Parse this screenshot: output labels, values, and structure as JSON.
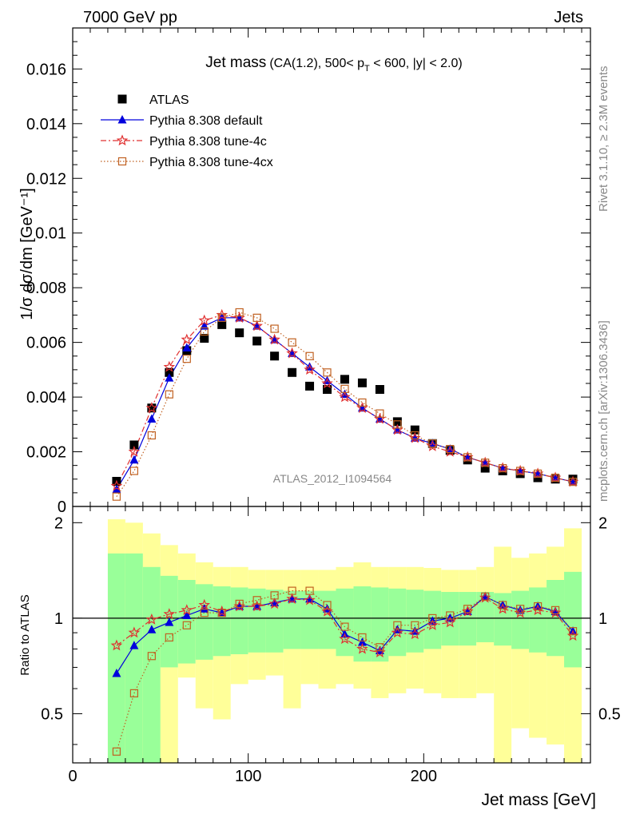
{
  "header": {
    "left": "7000 GeV pp",
    "right": "Jets"
  },
  "main_title": {
    "main": "Jet mass",
    "detail_a": "(CA(1.2), 500< p",
    "detail_sub": "T",
    "detail_b": " < 600, |y| < 2.0)"
  },
  "side_labels": {
    "rivet": "Rivet 3.1.10, ≥ 2.3M events",
    "mcplots": "mcplots.cern.ch [arXiv:1306.3436]"
  },
  "watermark": "ATLAS_2012_I1094564",
  "ratio_ylabel": "Ratio to ATLAS",
  "legend": [
    {
      "label": "ATLAS",
      "color": "#000000",
      "marker": "square"
    },
    {
      "label": "Pythia 8.308 default",
      "color": "#0000dd",
      "marker": "triangle"
    },
    {
      "label": "Pythia 8.308 tune-4c",
      "color": "#e03030",
      "marker": "star"
    },
    {
      "label": "Pythia 8.308 tune-4cx",
      "color": "#c06020",
      "marker": "open-square"
    }
  ],
  "chart_data": [
    {
      "type": "scatter",
      "panel": "main",
      "title": "Jet mass (CA(1.2), 500< pT < 600, |y| < 2.0)",
      "ylabel": "1/σ dσ/dm [GeV⁻¹]",
      "xlim": [
        0,
        295
      ],
      "ylim": [
        0,
        0.0175
      ],
      "yticks": [
        "0",
        "0.002",
        "0.004",
        "0.006",
        "0.008",
        "0.01",
        "0.012",
        "0.014",
        "0.016"
      ],
      "x": [
        25,
        35,
        45,
        55,
        65,
        75,
        85,
        95,
        105,
        115,
        125,
        135,
        145,
        155,
        165,
        175,
        185,
        195,
        205,
        215,
        225,
        235,
        245,
        255,
        265,
        275,
        285
      ],
      "series": [
        {
          "name": "ATLAS",
          "values": [
            0.00092,
            0.00225,
            0.0036,
            0.0049,
            0.0057,
            0.00615,
            0.00665,
            0.00635,
            0.00605,
            0.0055,
            0.0049,
            0.0044,
            0.00428,
            0.00465,
            0.00452,
            0.00428,
            0.0031,
            0.0028,
            0.0023,
            0.00205,
            0.0017,
            0.0014,
            0.0013,
            0.0012,
            0.00105,
            0.001,
            0.001
          ]
        },
        {
          "name": "Pythia 8.308 default",
          "values": [
            0.00062,
            0.0017,
            0.0032,
            0.0047,
            0.0058,
            0.0066,
            0.0069,
            0.0069,
            0.0066,
            0.0061,
            0.0056,
            0.0051,
            0.0046,
            0.0041,
            0.0036,
            0.0032,
            0.0028,
            0.0025,
            0.0023,
            0.0021,
            0.0018,
            0.0016,
            0.0014,
            0.0013,
            0.0012,
            0.00105,
            0.0009
          ]
        },
        {
          "name": "Pythia 8.308 tune-4c",
          "values": [
            0.00075,
            0.002,
            0.0036,
            0.0051,
            0.0061,
            0.0068,
            0.007,
            0.0069,
            0.0066,
            0.0061,
            0.0056,
            0.005,
            0.0045,
            0.004,
            0.0036,
            0.0032,
            0.0028,
            0.0025,
            0.0022,
            0.002,
            0.0018,
            0.0016,
            0.0014,
            0.0013,
            0.0012,
            0.00105,
            0.0009
          ]
        },
        {
          "name": "Pythia 8.308 tune-4cx",
          "values": [
            0.00036,
            0.0013,
            0.0026,
            0.0041,
            0.0054,
            0.0064,
            0.0069,
            0.0071,
            0.0069,
            0.0065,
            0.006,
            0.0055,
            0.0049,
            0.0043,
            0.0038,
            0.0034,
            0.003,
            0.0026,
            0.0023,
            0.0021,
            0.0018,
            0.0016,
            0.0014,
            0.0013,
            0.0012,
            0.00105,
            0.0009
          ]
        }
      ]
    },
    {
      "type": "line",
      "panel": "ratio",
      "xlabel": "Jet mass [GeV]",
      "ylabel": "Ratio to ATLAS",
      "xlim": [
        0,
        295
      ],
      "ylim": [
        0.35,
        2.25
      ],
      "xticks": [
        "0",
        "100",
        "200"
      ],
      "yticks": [
        "0.5",
        "1",
        "2"
      ],
      "x": [
        25,
        35,
        45,
        55,
        65,
        75,
        85,
        95,
        105,
        115,
        125,
        135,
        145,
        155,
        165,
        175,
        185,
        195,
        205,
        215,
        225,
        235,
        245,
        255,
        265,
        275,
        285
      ],
      "bands": {
        "edges": [
          20,
          30,
          40,
          50,
          60,
          70,
          80,
          90,
          100,
          110,
          120,
          130,
          140,
          150,
          160,
          170,
          180,
          190,
          200,
          210,
          220,
          230,
          240,
          250,
          260,
          270,
          280,
          290
        ],
        "inner_low": [
          0.35,
          0.35,
          0.35,
          0.7,
          0.72,
          0.74,
          0.76,
          0.77,
          0.78,
          0.78,
          0.8,
          0.8,
          0.8,
          0.76,
          0.73,
          0.73,
          0.76,
          0.78,
          0.8,
          0.82,
          0.82,
          0.84,
          0.82,
          0.8,
          0.78,
          0.76,
          0.7
        ],
        "inner_high": [
          1.6,
          1.6,
          1.45,
          1.36,
          1.32,
          1.28,
          1.26,
          1.25,
          1.24,
          1.23,
          1.22,
          1.22,
          1.22,
          1.24,
          1.26,
          1.25,
          1.24,
          1.23,
          1.22,
          1.21,
          1.21,
          1.21,
          1.2,
          1.22,
          1.25,
          1.32,
          1.4
        ],
        "outer_low": [
          0.35,
          0.35,
          0.35,
          0.35,
          0.65,
          0.52,
          0.48,
          0.62,
          0.64,
          0.66,
          0.52,
          0.62,
          0.6,
          0.62,
          0.6,
          0.56,
          0.58,
          0.6,
          0.58,
          0.56,
          0.56,
          0.58,
          0.35,
          0.45,
          0.42,
          0.4,
          0.35
        ],
        "outer_high": [
          2.05,
          2.0,
          1.85,
          1.7,
          1.6,
          1.5,
          1.45,
          1.45,
          1.42,
          1.42,
          1.42,
          1.42,
          1.42,
          1.45,
          1.5,
          1.45,
          1.45,
          1.45,
          1.44,
          1.42,
          1.42,
          1.45,
          1.68,
          1.55,
          1.6,
          1.68,
          1.92
        ]
      },
      "series": [
        {
          "name": "Pythia 8.308 default",
          "values": [
            0.67,
            0.82,
            0.92,
            0.97,
            1.02,
            1.07,
            1.04,
            1.09,
            1.09,
            1.12,
            1.15,
            1.15,
            1.07,
            0.89,
            0.84,
            0.79,
            0.92,
            0.91,
            0.98,
            1.0,
            1.05,
            1.17,
            1.1,
            1.06,
            1.09,
            1.05,
            0.91
          ]
        },
        {
          "name": "Pythia 8.308 tune-4c",
          "values": [
            0.82,
            0.9,
            0.99,
            1.03,
            1.06,
            1.1,
            1.05,
            1.09,
            1.09,
            1.11,
            1.15,
            1.14,
            1.05,
            0.86,
            0.8,
            0.78,
            0.9,
            0.89,
            0.95,
            0.97,
            1.05,
            1.16,
            1.07,
            1.04,
            1.06,
            1.04,
            0.88
          ]
        },
        {
          "name": "Pythia 8.308 tune-4cx",
          "values": [
            0.38,
            0.58,
            0.76,
            0.87,
            0.95,
            1.04,
            1.04,
            1.11,
            1.14,
            1.18,
            1.22,
            1.22,
            1.1,
            0.94,
            0.87,
            0.81,
            0.95,
            0.95,
            1.0,
            1.02,
            1.07,
            1.17,
            1.1,
            1.07,
            1.09,
            1.06,
            0.91
          ]
        }
      ]
    }
  ]
}
